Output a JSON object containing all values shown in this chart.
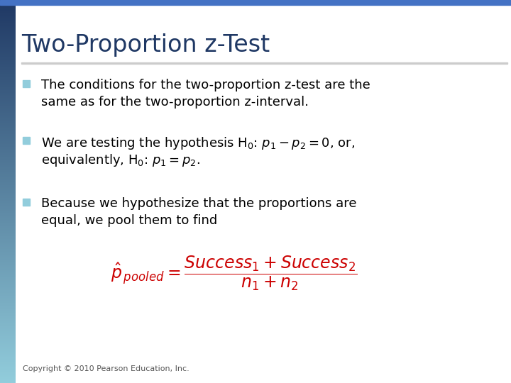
{
  "title": "Two-Proportion z-Test",
  "title_color": "#1F3864",
  "title_fontsize": 24,
  "background_color": "#FFFFFF",
  "bullet_color": "#92CDDC",
  "text_color": "#000000",
  "text_fontsize": 13,
  "bullet1_line1": "The conditions for the two-proportion z-test are the",
  "bullet1_line2": "same as for the two-proportion z-interval.",
  "bullet3_line1": "Because we hypothesize that the proportions are",
  "bullet3_line2": "equal, we pool them to find",
  "formula_color": "#CC0000",
  "formula_black_color": "#000000",
  "copyright": "Copyright © 2010 Pearson Education, Inc.",
  "copyright_fontsize": 8,
  "left_bar_colors": [
    "#1F3864",
    "#4472C4",
    "#92CDDC"
  ],
  "top_bar_color": "#4472C4"
}
